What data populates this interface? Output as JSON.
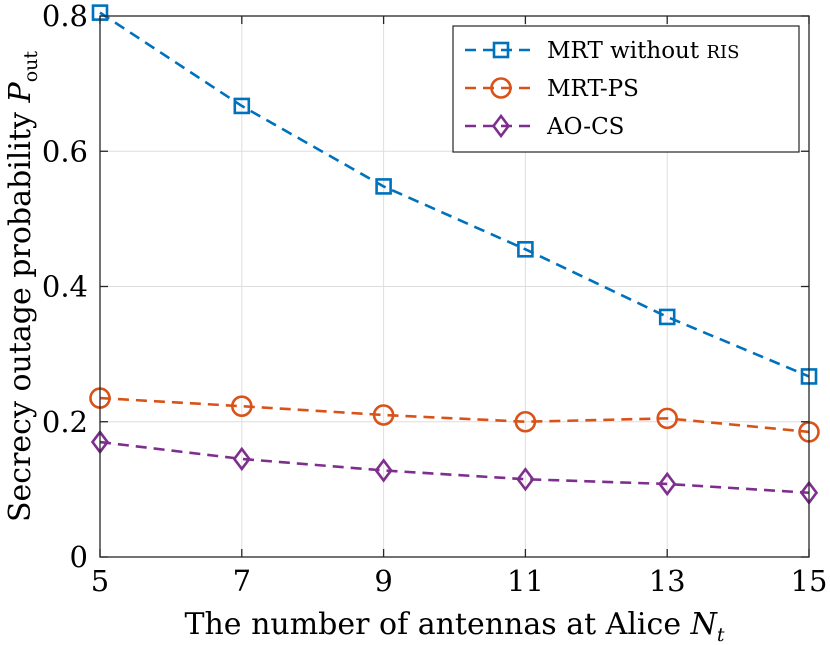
{
  "chart_data": {
    "type": "line",
    "title": "",
    "xlabel": "The number of antennas at Alice",
    "xlabel_symbol": "N",
    "xlabel_subscript": "t",
    "ylabel": "Secrecy outage probability",
    "ylabel_symbol": "P",
    "ylabel_subscript": "out",
    "x": [
      5,
      7,
      9,
      11,
      13,
      15
    ],
    "xlim": [
      5,
      15
    ],
    "ylim": [
      0,
      0.8
    ],
    "xticks": [
      5,
      7,
      9,
      11,
      13,
      15
    ],
    "xtick_labels": [
      "5",
      "7",
      "9",
      "11",
      "13",
      "15"
    ],
    "yticks": [
      0,
      0.2,
      0.4,
      0.6,
      0.8
    ],
    "ytick_labels": [
      "0",
      "0.2",
      "0.4",
      "0.6",
      "0.8"
    ],
    "grid": true,
    "legend_position": "top-right",
    "series": [
      {
        "name": "MRT without RIS",
        "name_main": "MRT without",
        "name_tail": "RIS",
        "color": "#0072BD",
        "marker": "square",
        "values": [
          0.805,
          0.667,
          0.548,
          0.455,
          0.355,
          0.267
        ]
      },
      {
        "name": "MRT-PS",
        "name_main": "MRT-PS",
        "name_tail": "",
        "color": "#D95319",
        "marker": "circle",
        "values": [
          0.235,
          0.223,
          0.21,
          0.2,
          0.205,
          0.185
        ]
      },
      {
        "name": "AO-CS",
        "name_main": "AO-CS",
        "name_tail": "",
        "color": "#7E2F8E",
        "marker": "diamond",
        "values": [
          0.17,
          0.145,
          0.128,
          0.115,
          0.108,
          0.095
        ]
      }
    ]
  }
}
